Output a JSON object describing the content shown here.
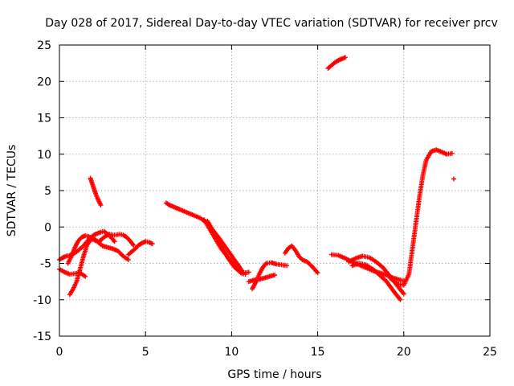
{
  "chart_data": {
    "type": "scatter",
    "title": "Day 028 of 2017, Sidereal Day-to-day VTEC variation (SDTVAR) for receiver prcv",
    "xlabel": "GPS time / hours",
    "ylabel": "SDTVAR / TECUs",
    "xlim": [
      0,
      25
    ],
    "ylim": [
      -15,
      25
    ],
    "x_ticks": [
      0,
      5,
      10,
      15,
      20,
      25
    ],
    "y_ticks": [
      -15,
      -10,
      -5,
      0,
      5,
      10,
      15,
      20,
      25
    ],
    "x_tick_labels": [
      "0",
      "5",
      "10",
      "15",
      "20",
      "25"
    ],
    "y_tick_labels": [
      "-15",
      "-10",
      "-5",
      "0",
      "5",
      "10",
      "15",
      "20",
      "25"
    ],
    "grid": true,
    "marker": "plus",
    "color": "#ff0000",
    "series": [
      {
        "name": "seg1",
        "x": [
          0.0,
          0.2,
          0.4,
          0.6,
          0.8,
          1.0,
          1.2,
          1.4,
          1.6,
          1.8,
          2.0,
          2.2,
          2.4,
          2.6,
          2.8,
          3.0,
          3.2
        ],
        "y": [
          -4.5,
          -4.2,
          -4.0,
          -3.9,
          -3.7,
          -3.4,
          -3.0,
          -2.6,
          -2.0,
          -1.5,
          -1.1,
          -0.9,
          -0.7,
          -0.6,
          -1.0,
          -1.4,
          -2.0
        ]
      },
      {
        "name": "seg2",
        "x": [
          0.0,
          0.3,
          0.6,
          0.9,
          1.2,
          1.5
        ],
        "y": [
          -5.8,
          -6.2,
          -6.5,
          -6.4,
          -6.3,
          -6.8
        ]
      },
      {
        "name": "seg3",
        "x": [
          0.6,
          0.8,
          1.0,
          1.2,
          1.4,
          1.6,
          1.8,
          2.0,
          2.2,
          2.5,
          2.8,
          3.1,
          3.4,
          3.7,
          4.0
        ],
        "y": [
          -9.3,
          -8.5,
          -7.5,
          -5.8,
          -4.0,
          -2.5,
          -1.8,
          -1.6,
          -2.0,
          -2.6,
          -2.8,
          -3.0,
          -3.3,
          -4.0,
          -4.5
        ]
      },
      {
        "name": "seg4",
        "x": [
          0.5,
          0.7,
          0.9,
          1.1,
          1.3,
          1.5,
          1.7,
          1.9,
          2.1,
          2.3,
          2.5,
          2.7,
          2.9,
          3.1,
          3.3,
          3.5,
          3.7,
          3.9,
          4.1,
          4.3
        ],
        "y": [
          -5.0,
          -4.0,
          -2.8,
          -1.9,
          -1.4,
          -1.2,
          -1.3,
          -1.6,
          -1.9,
          -2.0,
          -1.6,
          -1.2,
          -1.0,
          -1.1,
          -1.1,
          -1.0,
          -1.1,
          -1.4,
          -1.9,
          -2.5
        ]
      },
      {
        "name": "seg5",
        "x": [
          1.8,
          1.9,
          2.0,
          2.1,
          2.2,
          2.3,
          2.4
        ],
        "y": [
          6.7,
          6.0,
          5.3,
          4.6,
          4.0,
          3.5,
          3.0
        ]
      },
      {
        "name": "seg6",
        "x": [
          4.0,
          4.2,
          4.4,
          4.6,
          4.8,
          5.0,
          5.2,
          5.4
        ],
        "y": [
          -3.8,
          -3.4,
          -3.0,
          -2.5,
          -2.2,
          -2.0,
          -2.1,
          -2.3
        ]
      },
      {
        "name": "seg7",
        "x": [
          6.2,
          6.4,
          6.6,
          6.8,
          7.0,
          7.4,
          7.8,
          8.2,
          8.6,
          8.9,
          9.2,
          9.5,
          9.8,
          10.1,
          10.4,
          10.6
        ],
        "y": [
          3.3,
          3.0,
          2.8,
          2.6,
          2.4,
          2.0,
          1.6,
          1.2,
          0.5,
          -0.4,
          -1.3,
          -2.3,
          -3.3,
          -4.3,
          -5.3,
          -6.0
        ]
      },
      {
        "name": "seg8",
        "x": [
          8.4,
          8.6,
          8.8,
          9.0,
          9.2,
          9.4,
          9.6,
          9.8,
          10.0,
          10.2,
          10.4,
          10.6,
          10.8,
          11.0
        ],
        "y": [
          1.0,
          0.2,
          -0.6,
          -1.4,
          -2.2,
          -3.0,
          -3.6,
          -4.2,
          -4.8,
          -5.4,
          -6.0,
          -6.2,
          -6.3,
          -6.2
        ]
      },
      {
        "name": "seg9",
        "x": [
          8.6,
          8.8,
          9.0,
          9.2,
          9.4,
          9.6,
          9.8,
          10.0,
          10.2,
          10.4,
          10.6,
          10.8
        ],
        "y": [
          0.8,
          0.0,
          -1.0,
          -1.8,
          -2.7,
          -3.5,
          -4.3,
          -5.0,
          -5.6,
          -6.0,
          -6.4,
          -6.5
        ]
      },
      {
        "name": "seg10",
        "x": [
          11.2,
          11.4,
          11.6,
          11.8,
          12.0,
          12.3,
          12.6,
          12.9,
          13.2
        ],
        "y": [
          -8.5,
          -7.6,
          -6.5,
          -5.6,
          -5.0,
          -4.9,
          -5.1,
          -5.2,
          -5.3
        ]
      },
      {
        "name": "seg11",
        "x": [
          11.0,
          11.3,
          11.6,
          11.9,
          12.2,
          12.5
        ],
        "y": [
          -7.5,
          -7.3,
          -7.2,
          -7.0,
          -6.8,
          -6.6
        ]
      },
      {
        "name": "seg12",
        "x": [
          13.1,
          13.3,
          13.5,
          13.7,
          13.9,
          14.1,
          14.4,
          14.7,
          15.0
        ],
        "y": [
          -3.6,
          -2.9,
          -2.6,
          -3.2,
          -4.0,
          -4.5,
          -4.8,
          -5.5,
          -6.3
        ]
      },
      {
        "name": "seg13",
        "x": [
          15.6,
          15.8,
          16.0,
          16.2,
          16.4,
          16.6
        ],
        "y": [
          21.8,
          22.2,
          22.6,
          22.9,
          23.1,
          23.3
        ]
      },
      {
        "name": "seg14",
        "x": [
          15.8,
          16.2,
          16.6,
          17.0,
          17.4,
          17.8,
          18.2,
          18.6,
          19.0,
          19.4,
          19.8,
          20.0
        ],
        "y": [
          -3.8,
          -3.9,
          -4.3,
          -4.8,
          -5.2,
          -5.6,
          -6.0,
          -6.3,
          -6.6,
          -7.0,
          -7.3,
          -7.4
        ]
      },
      {
        "name": "seg15",
        "x": [
          16.8,
          17.2,
          17.6,
          18.0,
          18.4,
          18.8,
          19.2,
          19.6,
          20.0
        ],
        "y": [
          -4.8,
          -4.3,
          -4.0,
          -4.2,
          -4.8,
          -5.6,
          -6.8,
          -8.0,
          -9.2
        ]
      },
      {
        "name": "seg16",
        "x": [
          17.0,
          17.4,
          17.8,
          18.2,
          18.6,
          19.0,
          19.4,
          19.8
        ],
        "y": [
          -5.3,
          -5.0,
          -5.2,
          -5.8,
          -6.6,
          -7.5,
          -8.8,
          -10.0
        ]
      },
      {
        "name": "seg17",
        "x": [
          19.2,
          19.6,
          20.0,
          20.3,
          20.5,
          20.7,
          20.9,
          21.1,
          21.3,
          21.6,
          21.9,
          22.2,
          22.5,
          22.8
        ],
        "y": [
          -7.0,
          -7.8,
          -8.0,
          -6.5,
          -3.0,
          0.5,
          4.0,
          7.0,
          9.2,
          10.4,
          10.6,
          10.3,
          10.0,
          10.1
        ]
      },
      {
        "name": "seg18",
        "x": [
          22.9
        ],
        "y": [
          6.6
        ]
      }
    ]
  }
}
